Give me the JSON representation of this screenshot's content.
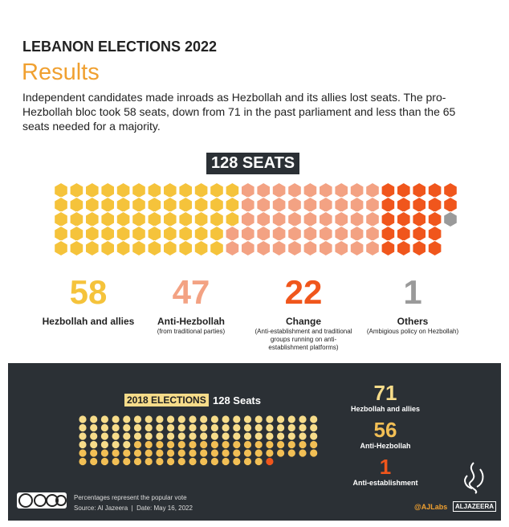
{
  "header": {
    "title": "LEBANON ELECTIONS 2022",
    "subtitle": "Results",
    "description": "Independent candidates made inroads as Hezbollah and its allies lost seats. The pro-Hezbollah bloc took 58 seats, down from 71 in the past parliament and less than the 65 seats needed for a majority."
  },
  "seats_label": "128 SEATS",
  "groups": [
    {
      "value": 58,
      "name": "Hezbollah and allies",
      "note": null,
      "color": "#f5c33b"
    },
    {
      "value": 47,
      "name": "Anti-Hezbollah",
      "note": "(from traditional parties)",
      "color": "#f3a283"
    },
    {
      "value": 22,
      "name": "Change",
      "note": "(Anti-establishment and traditional groups running on anti-establishment platforms)",
      "color": "#f0561c"
    },
    {
      "value": 1,
      "name": "Others",
      "note": "(Ambigious policy on Hezbollah)",
      "color": "#9a9a9a"
    }
  ],
  "elections_2018": {
    "label": "2018 ELECTIONS",
    "seats": "128 Seats",
    "groups": [
      {
        "value": 71,
        "name": "Hezbollah and allies",
        "color": "#f7dc8a"
      },
      {
        "value": 56,
        "name": "Anti-Hezbollah",
        "color": "#f2bf55"
      },
      {
        "value": 1,
        "name": "Anti-establishment",
        "color": "#f0561c"
      }
    ]
  },
  "footer": {
    "note": "Percentages represent the popular vote",
    "source": "Source: Al Jazeera  |  Date: May 16, 2022",
    "handle": "@AJLabs",
    "logo": "ALJAZEERA"
  }
}
